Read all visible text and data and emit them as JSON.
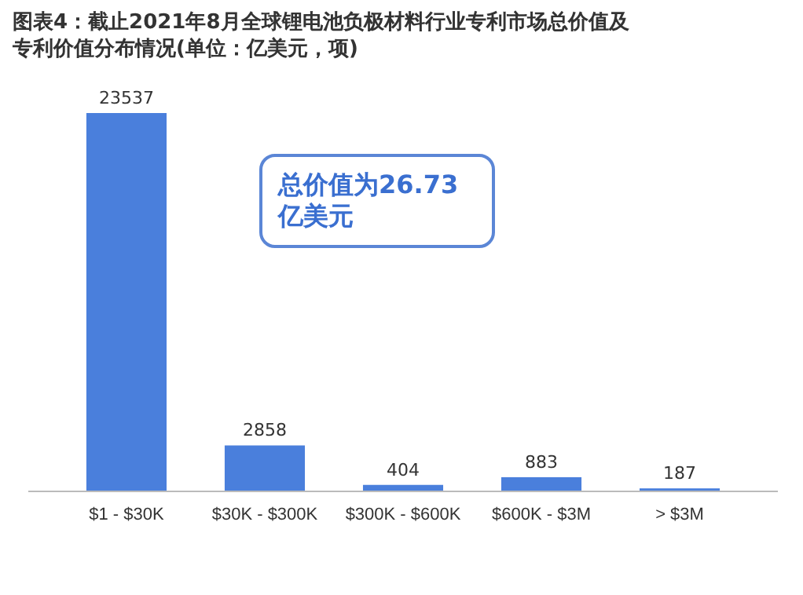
{
  "chart_data": {
    "type": "bar",
    "title": "图表4：截止2021年8月全球锂电池负极材料行业专利市场总价值及专利价值分布情况(单位：亿美元，项)",
    "categories": [
      "$1 - $30K",
      "$30K - $300K",
      "$300K - $600K",
      "$600K - $3M",
      "> $3M"
    ],
    "values": [
      23537,
      2858,
      404,
      883,
      187
    ],
    "color": "#4a7fdc",
    "data_labels": true,
    "annotations": [
      "总价值为26.73亿美元"
    ]
  }
}
